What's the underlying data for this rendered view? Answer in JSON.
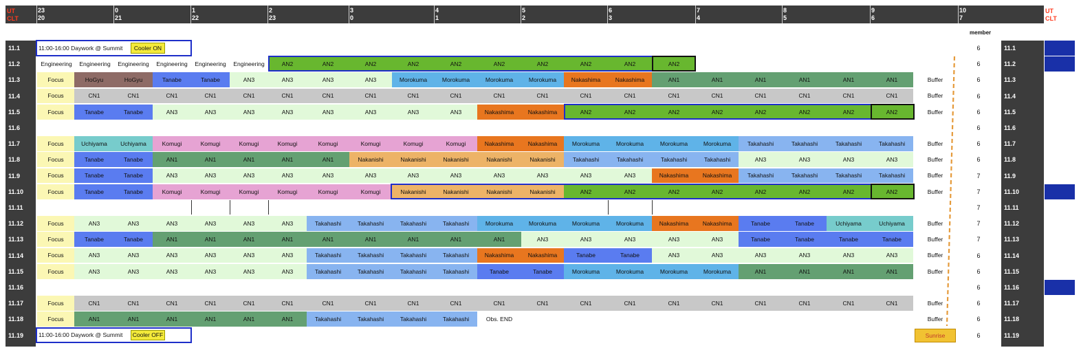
{
  "header": {
    "ut_label": "UT",
    "clt_label": "CLT",
    "ticks": [
      {
        "ut": "23",
        "clt": "20"
      },
      {
        "ut": "0",
        "clt": "21"
      },
      {
        "ut": "1",
        "clt": "22"
      },
      {
        "ut": "2",
        "clt": "23"
      },
      {
        "ut": "3",
        "clt": "0"
      },
      {
        "ut": "4",
        "clt": "1"
      },
      {
        "ut": "5",
        "clt": "2"
      },
      {
        "ut": "6",
        "clt": "3"
      },
      {
        "ut": "7",
        "clt": "4"
      },
      {
        "ut": "8",
        "clt": "5"
      },
      {
        "ut": "9",
        "clt": "6"
      },
      {
        "ut": "10",
        "clt": "7"
      }
    ],
    "member_label": "member"
  },
  "colors": {
    "Focus": "#fbf7b4",
    "HoGyu": "#8e6b66",
    "Tanabe": "#5a7cf0",
    "AN3": "#e1f9d9",
    "Morokuma": "#5fb3e8",
    "Nakashima": "#e8761f",
    "AN1": "#64a072",
    "CN1": "#c8c8c8",
    "AN2": "#68b72f",
    "Uchiyama": "#77cccc",
    "Komugi": "#e6a3d3",
    "Nakanishi": "#edb367",
    "Takahashi": "#88b4f0",
    "Engineering": "#ffffff",
    "Obs. END": "#ffffff",
    "band": "#3c3c3c",
    "accent_blue": "#1930a8",
    "sunrise_fill": "#f1c232",
    "sunrise_line": "#e59a3a"
  },
  "rows": [
    {
      "date": "11.1",
      "member": "6",
      "note": "11:00-16:00  Daywork @ Summit",
      "chip": "Cooler ON",
      "cells": [],
      "buffer": ""
    },
    {
      "date": "11.2",
      "member": "6",
      "cells": [
        "Engineering",
        "Engineering",
        "Engineering",
        "Engineering",
        "Engineering",
        "Engineering",
        "AN2",
        "AN2",
        "AN2",
        "AN2",
        "AN2",
        "AN2",
        "AN2",
        "AN2",
        "AN2",
        "AN2"
      ],
      "buffer": ""
    },
    {
      "date": "11.3",
      "member": "6",
      "cells": [
        "Focus",
        "HoGyu",
        "HoGyu",
        "Tanabe",
        "Tanabe",
        "AN3",
        "AN3",
        "AN3",
        "AN3",
        "Morokuma",
        "Morokuma",
        "Morokuma",
        "Morokuma",
        "Nakashima",
        "Nakashima",
        "AN1",
        "AN1",
        "AN1",
        "AN1",
        "AN1",
        "AN1"
      ],
      "buffer": "Buffer"
    },
    {
      "date": "11.4",
      "member": "6",
      "cells": [
        "Focus",
        "CN1",
        "CN1",
        "CN1",
        "CN1",
        "CN1",
        "CN1",
        "CN1",
        "CN1",
        "CN1",
        "CN1",
        "CN1",
        "CN1",
        "CN1",
        "CN1",
        "CN1",
        "CN1",
        "CN1",
        "CN1",
        "CN1",
        "CN1"
      ],
      "buffer": "Buffer"
    },
    {
      "date": "11.5",
      "member": "6",
      "cells": [
        "Focus",
        "Tanabe",
        "Tanabe",
        "AN3",
        "AN3",
        "AN3",
        "AN3",
        "AN3",
        "AN3",
        "AN3",
        "AN3",
        "Nakashima",
        "Nakashima",
        "AN2",
        "AN2",
        "AN2",
        "AN2",
        "AN2",
        "AN2",
        "AN2",
        "AN2"
      ],
      "buffer": "Buffer"
    },
    {
      "date": "11.6",
      "member": "6",
      "cells": [],
      "buffer": ""
    },
    {
      "date": "11.7",
      "member": "6",
      "cells": [
        "Focus",
        "Uchiyama",
        "Uchiyama",
        "Komugi",
        "Komugi",
        "Komugi",
        "Komugi",
        "Komugi",
        "Komugi",
        "Komugi",
        "Komugi",
        "Nakashima",
        "Nakashima",
        "Morokuma",
        "Morokuma",
        "Morokuma",
        "Morokuma",
        "Takahashi",
        "Takahashi",
        "Takahashi",
        "Takahashi"
      ],
      "buffer": "Buffer"
    },
    {
      "date": "11.8",
      "member": "6",
      "cells": [
        "Focus",
        "Tanabe",
        "Tanabe",
        "AN1",
        "AN1",
        "AN1",
        "AN1",
        "AN1",
        "Nakanishi",
        "Nakanishi",
        "Nakanishi",
        "Nakanishi",
        "Nakanishi",
        "Takahashi",
        "Takahashi",
        "Takahashi",
        "Takahashi",
        "AN3",
        "AN3",
        "AN3",
        "AN3"
      ],
      "buffer": "Buffer"
    },
    {
      "date": "11.9",
      "member": "7",
      "cells": [
        "Focus",
        "Tanabe",
        "Tanabe",
        "AN3",
        "AN3",
        "AN3",
        "AN3",
        "AN3",
        "AN3",
        "AN3",
        "AN3",
        "AN3",
        "AN3",
        "AN3",
        "AN3",
        "Nakashima",
        "Nakashima",
        "Takahashi",
        "Takahashi",
        "Takahashi",
        "Takahashi"
      ],
      "buffer": "Buffer"
    },
    {
      "date": "11.10",
      "member": "7",
      "cells": [
        "Focus",
        "Tanabe",
        "Tanabe",
        "Komugi",
        "Komugi",
        "Komugi",
        "Komugi",
        "Komugi",
        "Komugi",
        "Nakanishi",
        "Nakanishi",
        "Nakanishi",
        "Nakanishi",
        "AN2",
        "AN2",
        "AN2",
        "AN2",
        "AN2",
        "AN2",
        "AN2",
        "AN2"
      ],
      "buffer": "Buffer"
    },
    {
      "date": "11.11",
      "member": "7",
      "cells": [],
      "buffer": ""
    },
    {
      "date": "11.12",
      "member": "7",
      "cells": [
        "Focus",
        "AN3",
        "AN3",
        "AN3",
        "AN3",
        "AN3",
        "AN3",
        "Takahashi",
        "Takahashi",
        "Takahashi",
        "Takahashi",
        "Morokuma",
        "Morokuma",
        "Morokuma",
        "Morokuma",
        "Nakashima",
        "Nakashima",
        "Tanabe",
        "Tanabe",
        "Uchiyama",
        "Uchiyama"
      ],
      "buffer": "Buffer"
    },
    {
      "date": "11.13",
      "member": "7",
      "cells": [
        "Focus",
        "Tanabe",
        "Tanabe",
        "AN1",
        "AN1",
        "AN1",
        "AN1",
        "AN1",
        "AN1",
        "AN1",
        "AN1",
        "AN1",
        "AN3",
        "AN3",
        "AN3",
        "AN3",
        "AN3",
        "Tanabe",
        "Tanabe",
        "Tanabe",
        "Tanabe"
      ],
      "buffer": "Buffer"
    },
    {
      "date": "11.14",
      "member": "6",
      "cells": [
        "Focus",
        "AN3",
        "AN3",
        "AN3",
        "AN3",
        "AN3",
        "AN3",
        "Takahashi",
        "Takahashi",
        "Takahashi",
        "Takahashi",
        "Nakashima",
        "Nakashima",
        "Tanabe",
        "Tanabe",
        "AN3",
        "AN3",
        "AN3",
        "AN3",
        "AN3",
        "AN3"
      ],
      "buffer": "Buffer"
    },
    {
      "date": "11.15",
      "member": "6",
      "cells": [
        "Focus",
        "AN3",
        "AN3",
        "AN3",
        "AN3",
        "AN3",
        "AN3",
        "Takahashi",
        "Takahashi",
        "Takahashi",
        "Takahashi",
        "Tanabe",
        "Tanabe",
        "Morokuma",
        "Morokuma",
        "Morokuma",
        "Morokuma",
        "AN1",
        "AN1",
        "AN1",
        "AN1"
      ],
      "buffer": "Buffer"
    },
    {
      "date": "11.16",
      "member": "6",
      "cells": [],
      "buffer": ""
    },
    {
      "date": "11.17",
      "member": "6",
      "cells": [
        "Focus",
        "CN1",
        "CN1",
        "CN1",
        "CN1",
        "CN1",
        "CN1",
        "CN1",
        "CN1",
        "CN1",
        "CN1",
        "CN1",
        "CN1",
        "CN1",
        "CN1",
        "CN1",
        "CN1",
        "CN1",
        "CN1",
        "CN1",
        "CN1"
      ],
      "buffer": "Buffer"
    },
    {
      "date": "11.18",
      "member": "6",
      "cells": [
        "Focus",
        "AN1",
        "AN1",
        "AN1",
        "AN1",
        "AN1",
        "AN1",
        "Takahashi",
        "Takahashi",
        "Takahashi",
        "Takahashi",
        "Obs. END"
      ],
      "buffer": "Buffer"
    },
    {
      "date": "11.19",
      "member": "6",
      "note": "11:00-16:00  Daywork @ Summit",
      "chip": "Cooler OFF",
      "cells": [],
      "buffer": "",
      "sunrise": "Sunrise"
    }
  ]
}
